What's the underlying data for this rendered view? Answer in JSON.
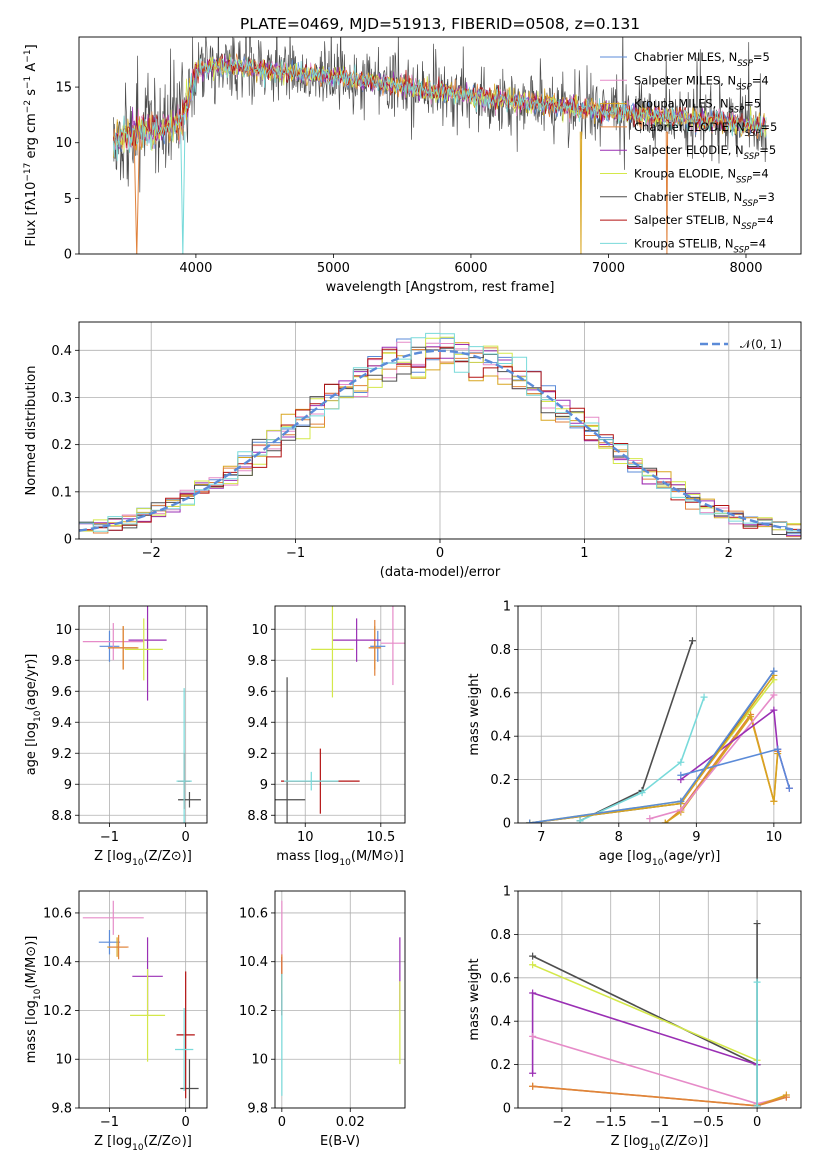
{
  "colors": {
    "Chabrier MILES": "#5b8bd8",
    "Salpeter MILES": "#e68bc8",
    "Kroupa MILES": "#d8a520",
    "Chabrier ELODIE": "#e0823c",
    "Salpeter ELODIE": "#9a2fb4",
    "Kroupa ELODIE": "#d4e84a",
    "Chabrier STELIB": "#4e4e4e",
    "Salpeter STELIB": "#b31212",
    "Kroupa STELIB": "#78dada",
    "normal": "#5b8bd8"
  },
  "chart_data": [
    {
      "id": "spectrum",
      "type": "line",
      "title": "PLATE=0469, MJD=51913, FIBERID=0508, z=0.131",
      "xlabel": "wavelength [Angstrom, rest frame]",
      "ylabel": "Flux [fλ10^-17 erg cm^-2 s^-1 A^-1]",
      "xlim": [
        3150,
        8400
      ],
      "ylim": [
        0,
        19.5
      ],
      "xticks": [
        4000,
        5000,
        6000,
        7000,
        8000
      ],
      "yticks": [
        0,
        5,
        10,
        15
      ],
      "grid": false,
      "legend_placement": "upper-right",
      "legend": [
        {
          "model": "Chabrier MILES",
          "label": "Chabrier MILES, N",
          "sub": "SSP",
          "n": "=5"
        },
        {
          "model": "Salpeter MILES",
          "label": "Salpeter MILES, N",
          "sub": "SSP",
          "n": "=4"
        },
        {
          "model": "Kroupa MILES",
          "label": "Kroupa MILES, N",
          "sub": "SSP",
          "n": "=5"
        },
        {
          "model": "Chabrier ELODIE",
          "label": "Chabrier ELODIE, N",
          "sub": "SSP",
          "n": "=5"
        },
        {
          "model": "Salpeter ELODIE",
          "label": "Salpeter ELODIE, N",
          "sub": "SSP",
          "n": "=5"
        },
        {
          "model": "Kroupa ELODIE",
          "label": "Kroupa ELODIE, N",
          "sub": "SSP",
          "n": "=4"
        },
        {
          "model": "Chabrier STELIB",
          "label": "Chabrier STELIB, N",
          "sub": "SSP",
          "n": "=3"
        },
        {
          "model": "Salpeter STELIB",
          "label": "Salpeter STELIB, N",
          "sub": "SSP",
          "n": "=4"
        },
        {
          "model": "Kroupa STELIB",
          "label": "Kroupa STELIB, N",
          "sub": "SSP",
          "n": "=4"
        }
      ],
      "continuum": [
        [
          3400,
          10.2
        ],
        [
          3500,
          10.8
        ],
        [
          3700,
          11.0
        ],
        [
          3900,
          12.0
        ],
        [
          4000,
          16.5
        ],
        [
          4200,
          17.0
        ],
        [
          4500,
          16.5
        ],
        [
          5000,
          16.0
        ],
        [
          5500,
          15.0
        ],
        [
          6000,
          14.2
        ],
        [
          6500,
          13.5
        ],
        [
          7000,
          12.8
        ],
        [
          7500,
          12.3
        ],
        [
          8000,
          11.6
        ],
        [
          8150,
          11.4
        ]
      ],
      "absorption_lines": [
        {
          "model": "Chabrier ELODIE",
          "x_start": 3550,
          "x_end": 3590
        },
        {
          "model": "Kroupa STELIB",
          "x_start": 3890,
          "x_end": 3920
        },
        {
          "model": "Kroupa MILES",
          "x_start": 6795,
          "x_end": 6805
        },
        {
          "model": "Chabrier ELODIE",
          "x_start": 7420,
          "x_end": 7430
        }
      ]
    },
    {
      "id": "residuals",
      "type": "histogram",
      "xlabel": "(data-model)/error",
      "ylabel": "Normed distribution",
      "xlim": [
        -2.5,
        2.5
      ],
      "ylim": [
        0,
        0.46
      ],
      "xticks": [
        -2,
        -1,
        0,
        1,
        2
      ],
      "yticks": [
        0.0,
        0.1,
        0.2,
        0.3,
        0.4
      ],
      "grid": true,
      "legend_placement": "upper-right",
      "legend_label": "𝒩(0, 1)",
      "bin_width": 0.1,
      "reference": {
        "type": "normal",
        "mean": 0,
        "sigma": 1
      },
      "models": [
        "Chabrier MILES",
        "Salpeter MILES",
        "Kroupa MILES",
        "Chabrier ELODIE",
        "Salpeter ELODIE",
        "Kroupa ELODIE",
        "Chabrier STELIB",
        "Salpeter STELIB",
        "Kroupa STELIB"
      ]
    },
    {
      "id": "age-vs-z",
      "type": "scatter",
      "xlabel": "Z [log10(Z/Z⊙)]",
      "ylabel": "age [log10(age/yr)]",
      "xlim": [
        -1.4,
        0.28
      ],
      "ylim": [
        8.75,
        10.15
      ],
      "xticks": [
        -1,
        0
      ],
      "yticks": [
        8.8,
        9.0,
        9.2,
        9.4,
        9.6,
        9.8,
        10.0
      ],
      "grid": true,
      "points": [
        {
          "model": "Chabrier MILES",
          "x": -1.0,
          "y": 9.89,
          "xerr": 0.13,
          "yerr": 0.1
        },
        {
          "model": "Salpeter MILES",
          "x": -0.95,
          "y": 9.92,
          "xerr": 0.4,
          "yerr": 0.12
        },
        {
          "model": "Kroupa MILES",
          "x": -0.82,
          "y": 9.88,
          "xerr": 0.18,
          "yerr": 0.14
        },
        {
          "model": "Chabrier ELODIE",
          "x": -0.82,
          "y": 9.88,
          "xerr": 0.2,
          "yerr": 0.14
        },
        {
          "model": "Salpeter ELODIE",
          "x": -0.5,
          "y": 9.93,
          "xerr": 0.25,
          "yerr": 0.39
        },
        {
          "model": "Kroupa ELODIE",
          "x": -0.55,
          "y": 9.87,
          "xerr": 0.25,
          "yerr": 0.2
        },
        {
          "model": "Chabrier STELIB",
          "x": 0.05,
          "y": 8.9,
          "xerr": 0.15,
          "yerr": 0.05
        },
        {
          "model": "Salpeter STELIB",
          "x": -0.02,
          "y": 9.02,
          "xerr": 0.08,
          "yerr": 0.18
        },
        {
          "model": "Kroupa STELIB",
          "x": -0.02,
          "y": 9.02,
          "xerr": 0.1,
          "yerr": 0.6
        }
      ]
    },
    {
      "id": "age-vs-mass",
      "type": "scatter",
      "xlabel": "mass [log10(M/M⊙)]",
      "ylabel": "",
      "xlim": [
        9.8,
        10.66
      ],
      "ylim": [
        8.75,
        10.15
      ],
      "xticks": [
        10,
        10.5
      ],
      "yticks": [
        8.8,
        9.0,
        9.2,
        9.4,
        9.6,
        9.8,
        10.0
      ],
      "grid": true,
      "points": [
        {
          "model": "Chabrier MILES",
          "x": 10.48,
          "y": 9.89,
          "xerr": 0.05,
          "yerr": 0.1
        },
        {
          "model": "Salpeter MILES",
          "x": 10.58,
          "y": 9.91,
          "xerr": 0.08,
          "yerr": 0.27
        },
        {
          "model": "Kroupa MILES",
          "x": 10.46,
          "y": 9.88,
          "xerr": 0.04,
          "yerr": 0.14
        },
        {
          "model": "Chabrier ELODIE",
          "x": 10.46,
          "y": 9.88,
          "xerr": 0.04,
          "yerr": 0.18
        },
        {
          "model": "Salpeter ELODIE",
          "x": 10.34,
          "y": 9.93,
          "xerr": 0.16,
          "yerr": 0.14
        },
        {
          "model": "Kroupa ELODIE",
          "x": 10.18,
          "y": 9.87,
          "xerr": 0.14,
          "yerr": 0.31
        },
        {
          "model": "Chabrier STELIB",
          "x": 9.88,
          "y": 8.9,
          "xerr": 0.12,
          "yerr": 0.79
        },
        {
          "model": "Salpeter STELIB",
          "x": 10.1,
          "y": 9.02,
          "xerr": 0.26,
          "yerr": 0.21
        },
        {
          "model": "Kroupa STELIB",
          "x": 10.04,
          "y": 9.02,
          "xerr": 0.18,
          "yerr": 0.06
        }
      ]
    },
    {
      "id": "weight-vs-age",
      "type": "line",
      "xlabel": "age [log10(age/yr)]",
      "ylabel": "mass weight",
      "xlim": [
        6.7,
        10.35
      ],
      "ylim": [
        0,
        1.0
      ],
      "xticks": [
        7,
        8,
        9,
        10
      ],
      "yticks": [
        0.0,
        0.2,
        0.4,
        0.6,
        0.8,
        1.0
      ],
      "grid": true,
      "series": [
        {
          "model": "Chabrier STELIB",
          "x": [
            7.5,
            8.3,
            8.95
          ],
          "y": [
            0.01,
            0.15,
            0.84
          ]
        },
        {
          "model": "Kroupa STELIB",
          "x": [
            7.5,
            8.3,
            8.8,
            9.1
          ],
          "y": [
            0.01,
            0.14,
            0.28,
            0.58
          ]
        },
        {
          "model": "Chabrier ELODIE",
          "x": [
            8.6,
            8.8,
            9.7,
            10.0,
            10.05
          ],
          "y": [
            0.0,
            0.06,
            0.5,
            0.1,
            0.33
          ]
        },
        {
          "model": "Kroupa MILES",
          "x": [
            8.6,
            8.8,
            9.7,
            10.0,
            10.05
          ],
          "y": [
            0.0,
            0.05,
            0.49,
            0.1,
            0.32
          ]
        },
        {
          "model": "Salpeter MILES",
          "x": [
            8.4,
            8.8,
            10.0
          ],
          "y": [
            0.02,
            0.06,
            0.59
          ]
        },
        {
          "model": "Salpeter ELODIE",
          "x": [
            8.8,
            10.0,
            10.05,
            10.2
          ],
          "y": [
            0.2,
            0.52,
            0.34,
            0.16
          ]
        },
        {
          "model": "Chabrier MILES",
          "x": [
            8.8,
            10.05,
            10.2
          ],
          "y": [
            0.22,
            0.34,
            0.16
          ]
        },
        {
          "model": "Kroupa ELODIE",
          "x": [
            6.85,
            8.8,
            10.0
          ],
          "y": [
            0.0,
            0.1,
            0.66
          ]
        },
        {
          "model": "Chabrier STELIB",
          "x": [
            6.85,
            8.8,
            10.0
          ],
          "y": [
            0.0,
            0.09,
            0.7
          ]
        },
        {
          "model": "Kroupa MILES",
          "x": [
            6.85,
            8.8,
            10.0
          ],
          "y": [
            0.0,
            0.09,
            0.68
          ]
        },
        {
          "model": "Chabrier MILES",
          "x": [
            6.85,
            8.8,
            10.0
          ],
          "y": [
            0.0,
            0.1,
            0.7
          ]
        }
      ]
    },
    {
      "id": "mass-vs-z",
      "type": "scatter",
      "xlabel": "Z [log10(Z/Z⊙)]",
      "ylabel": "mass [log10(M/M⊙)]",
      "xlim": [
        -1.4,
        0.28
      ],
      "ylim": [
        9.8,
        10.69
      ],
      "xticks": [
        -1,
        0
      ],
      "yticks": [
        9.8,
        10.0,
        10.2,
        10.4,
        10.6
      ],
      "grid": true,
      "points": [
        {
          "model": "Chabrier MILES",
          "x": -1.0,
          "y": 10.48,
          "xerr": 0.14,
          "yerr": 0.05
        },
        {
          "model": "Salpeter MILES",
          "x": -0.95,
          "y": 10.58,
          "xerr": 0.4,
          "yerr": 0.07
        },
        {
          "model": "Kroupa MILES",
          "x": -0.9,
          "y": 10.46,
          "xerr": 0.13,
          "yerr": 0.04
        },
        {
          "model": "Chabrier ELODIE",
          "x": -0.88,
          "y": 10.46,
          "xerr": 0.13,
          "yerr": 0.05
        },
        {
          "model": "Salpeter ELODIE",
          "x": -0.5,
          "y": 10.34,
          "xerr": 0.2,
          "yerr": 0.16
        },
        {
          "model": "Kroupa ELODIE",
          "x": -0.5,
          "y": 10.18,
          "xerr": 0.23,
          "yerr": 0.19
        },
        {
          "model": "Chabrier STELIB",
          "x": 0.05,
          "y": 9.88,
          "xerr": 0.12,
          "yerr": 0.12
        },
        {
          "model": "Salpeter STELIB",
          "x": 0.0,
          "y": 10.1,
          "xerr": 0.12,
          "yerr": 0.26
        },
        {
          "model": "Kroupa STELIB",
          "x": -0.02,
          "y": 10.04,
          "xerr": 0.12,
          "yerr": 0.17
        }
      ]
    },
    {
      "id": "mass-vs-ebv",
      "type": "scatter",
      "xlabel": "E(B-V)",
      "ylabel": "",
      "xlim": [
        -0.002,
        0.036
      ],
      "ylim": [
        9.8,
        10.69
      ],
      "xticks": [
        0.0,
        0.02
      ],
      "yticks": [
        9.8,
        10.0,
        10.2,
        10.4,
        10.6
      ],
      "grid": true,
      "points": [
        {
          "model": "Salpeter MILES",
          "x": 0.0,
          "y": 10.5,
          "xerr": 0,
          "yerr": 0.15
        },
        {
          "model": "Salpeter STELIB",
          "x": 0.0,
          "y": 10.3,
          "xerr": 0,
          "yerr": 0.12
        },
        {
          "model": "Chabrier ELODIE",
          "x": 0.0,
          "y": 10.35,
          "xerr": 0,
          "yerr": 0.08
        },
        {
          "model": "Kroupa STELIB",
          "x": 0.0,
          "y": 10.1,
          "xerr": 0,
          "yerr": 0.25
        },
        {
          "model": "Salpeter ELODIE",
          "x": 0.0345,
          "y": 10.35,
          "xerr": 0,
          "yerr": 0.15
        },
        {
          "model": "Kroupa ELODIE",
          "x": 0.0345,
          "y": 10.15,
          "xerr": 0,
          "yerr": 0.17
        }
      ]
    },
    {
      "id": "weight-vs-z",
      "type": "line",
      "xlabel": "Z [log10(Z/Z⊙)]",
      "ylabel": "mass weight",
      "xlim": [
        -2.45,
        0.45
      ],
      "ylim": [
        0,
        1.0
      ],
      "xticks": [
        -2.0,
        -1.5,
        -1.0,
        -0.5,
        0.0
      ],
      "yticks": [
        0.0,
        0.2,
        0.4,
        0.6,
        0.8,
        1.0
      ],
      "grid": true,
      "series": [
        {
          "model": "Chabrier STELIB",
          "x": [
            -2.3,
            0.0
          ],
          "y": [
            0.7,
            0.2
          ]
        },
        {
          "model": "Kroupa ELODIE",
          "x": [
            -2.3,
            0.0
          ],
          "y": [
            0.66,
            0.22
          ]
        },
        {
          "model": "Salpeter ELODIE",
          "x": [
            -2.3,
            -2.3,
            0.0
          ],
          "y": [
            0.16,
            0.53,
            0.2
          ]
        },
        {
          "model": "Salpeter MILES",
          "x": [
            -2.3,
            0.0,
            0.3
          ],
          "y": [
            0.33,
            0.02,
            0.05
          ]
        },
        {
          "model": "Kroupa MILES",
          "x": [
            -2.3,
            0.0,
            0.3
          ],
          "y": [
            0.1,
            0.01,
            0.06
          ]
        },
        {
          "model": "Chabrier ELODIE",
          "x": [
            -2.3,
            0.0,
            0.3
          ],
          "y": [
            0.1,
            0.01,
            0.05
          ]
        },
        {
          "model": "Chabrier STELIB",
          "x": [
            0.0,
            0.0
          ],
          "y": [
            0.01,
            0.85
          ]
        },
        {
          "model": "Kroupa STELIB",
          "x": [
            0.0,
            0.0
          ],
          "y": [
            0.01,
            0.58
          ]
        }
      ]
    }
  ]
}
